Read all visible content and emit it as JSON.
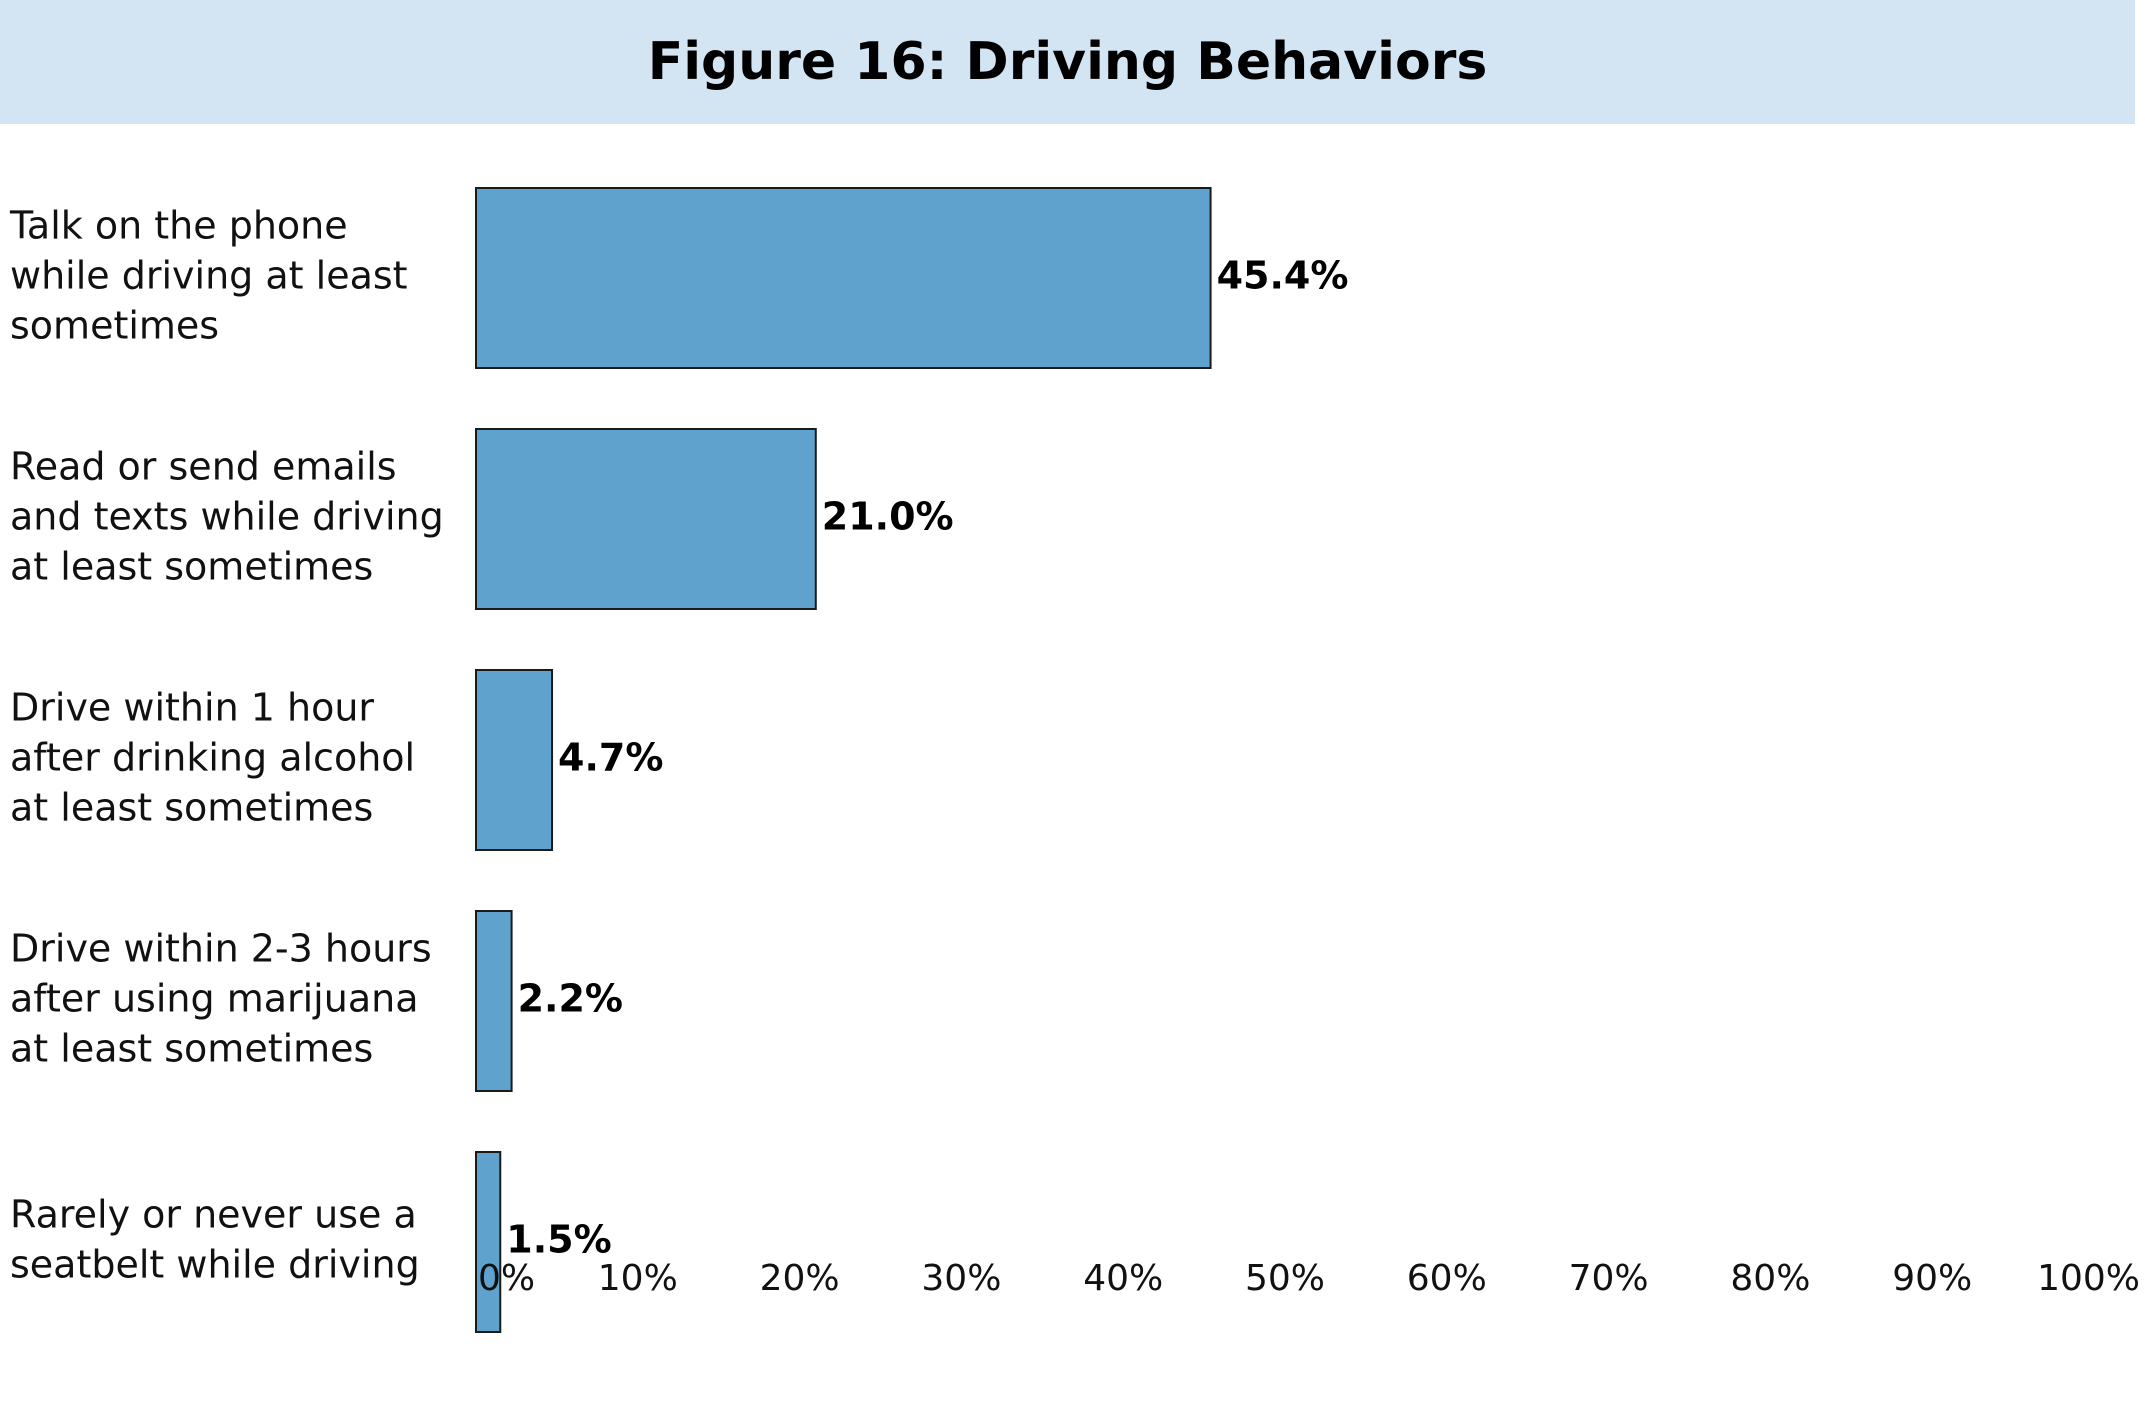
{
  "chart_data": {
    "type": "bar",
    "orientation": "horizontal",
    "title": "Figure 16: Driving Behaviors",
    "categories": [
      "Talk on the phone while driving at least sometimes",
      "Read or send emails and texts while driving at least sometimes",
      "Drive within 1 hour after drinking alcohol at least sometimes",
      "Drive within 2-3 hours after using marijuana at least sometimes",
      "Rarely or never use a seatbelt while driving"
    ],
    "category_lines": [
      [
        "Talk on the phone",
        "while driving at least",
        "sometimes"
      ],
      [
        "Read or send emails",
        "and texts while driving",
        "at least sometimes"
      ],
      [
        "Drive within 1 hour",
        "after drinking alcohol",
        "at least sometimes"
      ],
      [
        "Drive within 2-3 hours",
        "after using marijuana",
        "at least sometimes"
      ],
      [
        "Rarely or never use a",
        "seatbelt while driving"
      ]
    ],
    "values": [
      45.4,
      21.0,
      4.7,
      2.2,
      1.5
    ],
    "value_labels": [
      "45.4%",
      "21.0%",
      "4.7%",
      "2.2%",
      "1.5%"
    ],
    "xlim": [
      0,
      100
    ],
    "x_ticks": [
      "0%",
      "10%",
      "20%",
      "30%",
      "40%",
      "50%",
      "60%",
      "70%",
      "80%",
      "90%",
      "100%"
    ],
    "xlabel": "",
    "ylabel": "",
    "grid": false,
    "legend": "none",
    "colors": {
      "bar_fill": "#5fa2cd",
      "bar_stroke": "#1a1a1a",
      "title_banner": "#d3e4f3"
    }
  }
}
